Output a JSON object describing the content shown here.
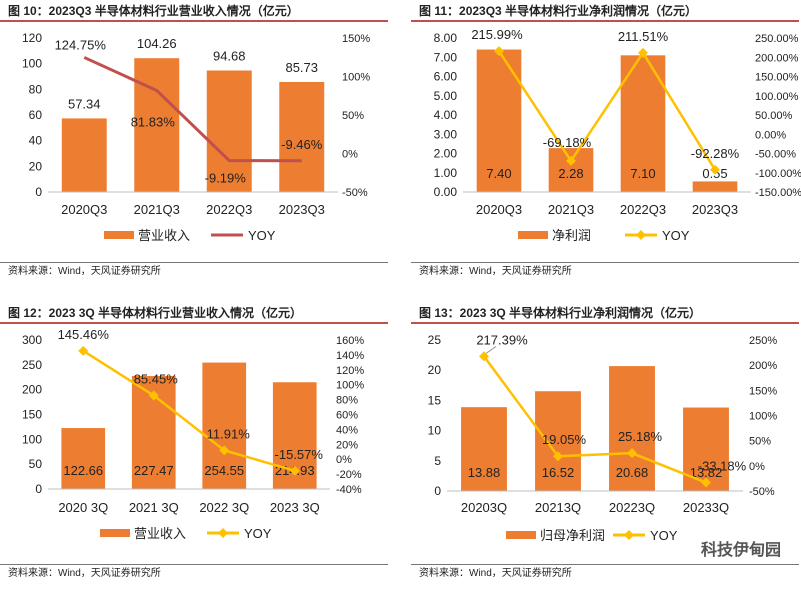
{
  "chart_data": [
    {
      "id": "c1",
      "type": "bar",
      "title": "图 10：2023Q3 半导体材料行业营业收入情况（亿元）",
      "categories": [
        "2020Q3",
        "2021Q3",
        "2022Q3",
        "2023Q3"
      ],
      "series": [
        {
          "name": "营业收入",
          "kind": "bar",
          "axis": "left",
          "values": [
            57.34,
            104.26,
            94.68,
            85.73
          ],
          "labels": [
            "57.34",
            "104.26",
            "94.68",
            "85.73"
          ],
          "label_pos": "above"
        },
        {
          "name": "YOY",
          "kind": "line",
          "axis": "right",
          "marker": false,
          "values": [
            124.75,
            81.83,
            -9.19,
            -9.46
          ],
          "labels": [
            "124.75%",
            "81.83%",
            "-9.19%",
            "-9.46%"
          ]
        }
      ],
      "ylim_left": [
        0,
        120
      ],
      "yticks_left": [
        0,
        20,
        40,
        60,
        80,
        100,
        120
      ],
      "ytick_labels_left": [
        "0",
        "20",
        "40",
        "60",
        "80",
        "100",
        "120"
      ],
      "ylim_right": [
        -50,
        150
      ],
      "yticks_right": [
        -50,
        0,
        50,
        100,
        150
      ],
      "ytick_labels_right": [
        "-50%",
        "0%",
        "50%",
        "100%",
        "150%"
      ],
      "source": "资料来源：Wind，天风证券研究所",
      "colors": {
        "bar": "#ed7d31",
        "line": "#c0504d"
      }
    },
    {
      "id": "c2",
      "type": "bar",
      "title": "图 11：2023Q3 半导体材料行业净利润情况（亿元）",
      "categories": [
        "2020Q3",
        "2021Q3",
        "2022Q3",
        "2023Q3"
      ],
      "series": [
        {
          "name": "净利润",
          "kind": "bar",
          "axis": "left",
          "values": [
            7.4,
            2.28,
            7.1,
            0.55
          ],
          "labels": [
            "7.40",
            "2.28",
            "7.10",
            "0.55"
          ],
          "label_pos": "inside"
        },
        {
          "name": "YOY",
          "kind": "line",
          "axis": "right",
          "marker": true,
          "values": [
            215.99,
            -69.18,
            211.51,
            -92.28
          ],
          "labels": [
            "215.99%",
            "-69.18%",
            "211.51%",
            "-92.28%"
          ]
        }
      ],
      "ylim_left": [
        0,
        8
      ],
      "yticks_left": [
        0,
        1,
        2,
        3,
        4,
        5,
        6,
        7,
        8
      ],
      "ytick_labels_left": [
        "0.00",
        "1.00",
        "2.00",
        "3.00",
        "4.00",
        "5.00",
        "6.00",
        "7.00",
        "8.00"
      ],
      "ylim_right": [
        -150,
        250
      ],
      "yticks_right": [
        -150,
        -100,
        -50,
        0,
        50,
        100,
        150,
        200,
        250
      ],
      "ytick_labels_right": [
        "-150.00%",
        "-100.00%",
        "-50.00%",
        "0.00%",
        "50.00%",
        "100.00%",
        "150.00%",
        "200.00%",
        "250.00%"
      ],
      "source": "资料来源：Wind，天风证券研究所",
      "colors": {
        "bar": "#ed7d31",
        "line": "#ffc000"
      }
    },
    {
      "id": "c3",
      "type": "bar",
      "title": "图 12：2023 3Q 半导体材料行业营业收入情况（亿元）",
      "categories": [
        "2020 3Q",
        "2021 3Q",
        "2022 3Q",
        "2023 3Q"
      ],
      "series": [
        {
          "name": "营业收入",
          "kind": "bar",
          "axis": "left",
          "values": [
            122.66,
            227.47,
            254.55,
            214.93
          ],
          "labels": [
            "122.66",
            "227.47",
            "254.55",
            "214.93"
          ],
          "label_pos": "inside"
        },
        {
          "name": "YOY",
          "kind": "line",
          "axis": "right",
          "marker": true,
          "values": [
            145.46,
            85.45,
            11.91,
            -15.57
          ],
          "labels": [
            "145.46%",
            "85.45%",
            "11.91%",
            "-15.57%"
          ]
        }
      ],
      "ylim_left": [
        0,
        300
      ],
      "yticks_left": [
        0,
        50,
        100,
        150,
        200,
        250,
        300
      ],
      "ytick_labels_left": [
        "0",
        "50",
        "100",
        "150",
        "200",
        "250",
        "300"
      ],
      "ylim_right": [
        -40,
        160
      ],
      "yticks_right": [
        -40,
        -20,
        0,
        20,
        40,
        60,
        80,
        100,
        120,
        140,
        160
      ],
      "ytick_labels_right": [
        "-40%",
        "-20%",
        "0%",
        "20%",
        "40%",
        "60%",
        "80%",
        "100%",
        "120%",
        "140%",
        "160%"
      ],
      "source": "资料来源：Wind，天风证券研究所",
      "colors": {
        "bar": "#ed7d31",
        "line": "#ffc000"
      }
    },
    {
      "id": "c4",
      "type": "bar",
      "title": "图 13：2023 3Q 半导体材料行业净利润情况（亿元）",
      "categories": [
        "20203Q",
        "20213Q",
        "20223Q",
        "20233Q"
      ],
      "series": [
        {
          "name": "归母净利润",
          "kind": "bar",
          "axis": "left",
          "values": [
            13.88,
            16.52,
            20.68,
            13.82
          ],
          "labels": [
            "13.88",
            "16.52",
            "20.68",
            "13.82"
          ],
          "label_pos": "inside"
        },
        {
          "name": "YOY",
          "kind": "line",
          "axis": "right",
          "marker": true,
          "values": [
            217.39,
            19.05,
            25.18,
            -33.18
          ],
          "labels": [
            "217.39%",
            "19.05%",
            "25.18%",
            "-33.18%"
          ]
        }
      ],
      "ylim_left": [
        0,
        25
      ],
      "yticks_left": [
        0,
        5,
        10,
        15,
        20,
        25
      ],
      "ytick_labels_left": [
        "0",
        "5",
        "10",
        "15",
        "20",
        "25"
      ],
      "ylim_right": [
        -50,
        250
      ],
      "yticks_right": [
        -50,
        0,
        50,
        100,
        150,
        200,
        250
      ],
      "ytick_labels_right": [
        "-50%",
        "0%",
        "50%",
        "100%",
        "150%",
        "200%",
        "250%"
      ],
      "source": "资料来源：Wind，天风证券研究所",
      "colors": {
        "bar": "#ed7d31",
        "line": "#ffc000"
      }
    }
  ],
  "watermark": "科技伊甸园"
}
